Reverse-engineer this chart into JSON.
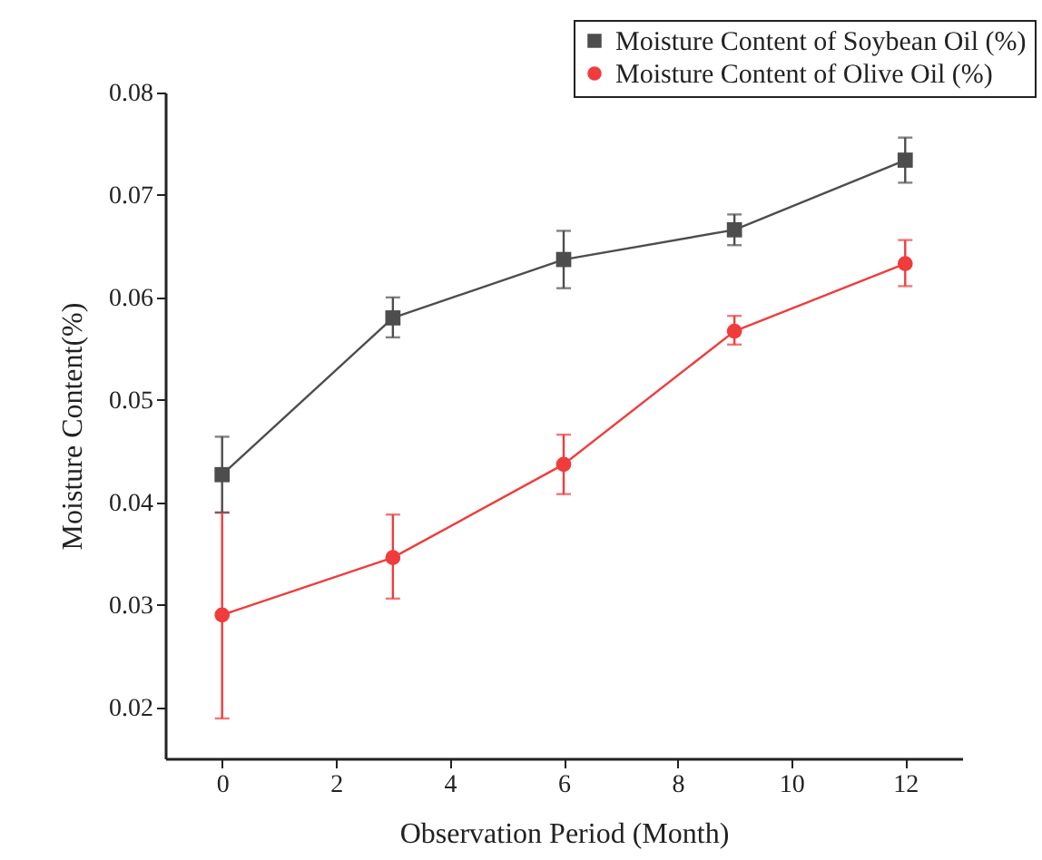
{
  "chart_data": {
    "type": "line",
    "xlabel": "Observation Period (Month)",
    "ylabel": "Moisture Content(%)",
    "x": [
      0,
      3,
      6,
      9,
      12
    ],
    "series": [
      {
        "name": "Moisture Content of Soybean Oil (%)",
        "color": "#4d4d4d",
        "marker": "square",
        "values": [
          0.0427,
          0.058,
          0.0637,
          0.0666,
          0.0734
        ],
        "errors": [
          [
            0.039,
            0.0464
          ],
          [
            0.0561,
            0.06
          ],
          [
            0.0609,
            0.0665
          ],
          [
            0.0651,
            0.0681
          ],
          [
            0.0712,
            0.0756
          ]
        ]
      },
      {
        "name": "Moisture Content of Olive Oil (%)",
        "color": "#f03c3c",
        "marker": "circle",
        "values": [
          0.029,
          0.0346,
          0.0437,
          0.0567,
          0.0633
        ],
        "errors": [
          [
            0.0189,
            0.039
          ],
          [
            0.0306,
            0.0388
          ],
          [
            0.0408,
            0.0466
          ],
          [
            0.0554,
            0.0582
          ],
          [
            0.0611,
            0.0656
          ]
        ]
      }
    ],
    "xlim": [
      -1,
      13
    ],
    "xticks": [
      0,
      2,
      4,
      6,
      8,
      10,
      12
    ],
    "ylim": [
      0.015,
      0.08
    ],
    "yticks": [
      0.02,
      0.03,
      0.04,
      0.05,
      0.06,
      0.07,
      0.08
    ],
    "grid": false,
    "legend": "top right"
  }
}
